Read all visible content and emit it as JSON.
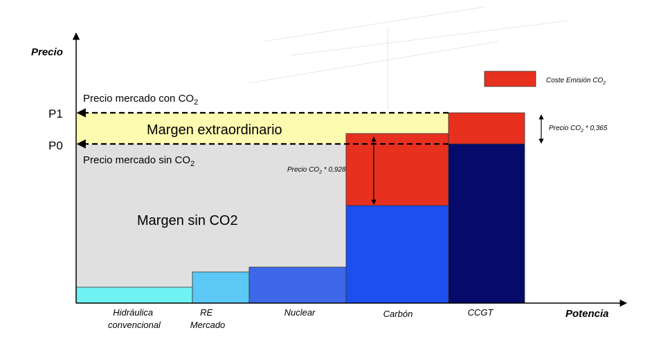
{
  "axes": {
    "y_label": "Precio",
    "x_label": "Potencia",
    "p1_label": "P1",
    "p0_label": "P0"
  },
  "legend": {
    "label": "Coste Emisión CO",
    "label_sub": "2",
    "color": "#e8301f"
  },
  "annotations": {
    "market_with_co2": "Precio mercado con CO",
    "market_with_co2_sub": "2",
    "market_without_co2": "Precio mercado sin CO",
    "market_without_co2_sub": "2",
    "extraordinary_margin": "Margen extraordinario",
    "margin_without_co2": "Margen sin CO2",
    "ccgt_co2_cost": "Precio CO",
    "ccgt_co2_cost_sub": "2",
    "ccgt_co2_cost_factor": " * 0,365",
    "coal_co2_cost": "Precio CO",
    "coal_co2_cost_sub": "2",
    "coal_co2_cost_factor": " * 0,928"
  },
  "technologies": [
    {
      "key": "hidraulica",
      "label_line1": "Hidráulica",
      "label_line2": "convencional",
      "color": "#6ef2f2"
    },
    {
      "key": "re",
      "label_line1": "RE",
      "label_line2": "Mercado",
      "color": "#5bc8f5"
    },
    {
      "key": "nuclear",
      "label_line1": "Nuclear",
      "label_line2": "",
      "color": "#3d68e8"
    },
    {
      "key": "carbon",
      "label_line1": "Carbón",
      "label_line2": "",
      "color": "#1d4ef0",
      "co2_color": "#e8301f"
    },
    {
      "key": "ccgt",
      "label_line1": "CCGT",
      "label_line2": "",
      "color": "#050a6b",
      "co2_color": "#e8301f"
    }
  ],
  "colors": {
    "margin_without_co2": "#e0e0e0",
    "extraordinary_margin": "#fdfbb0",
    "axis": "#000000"
  }
}
